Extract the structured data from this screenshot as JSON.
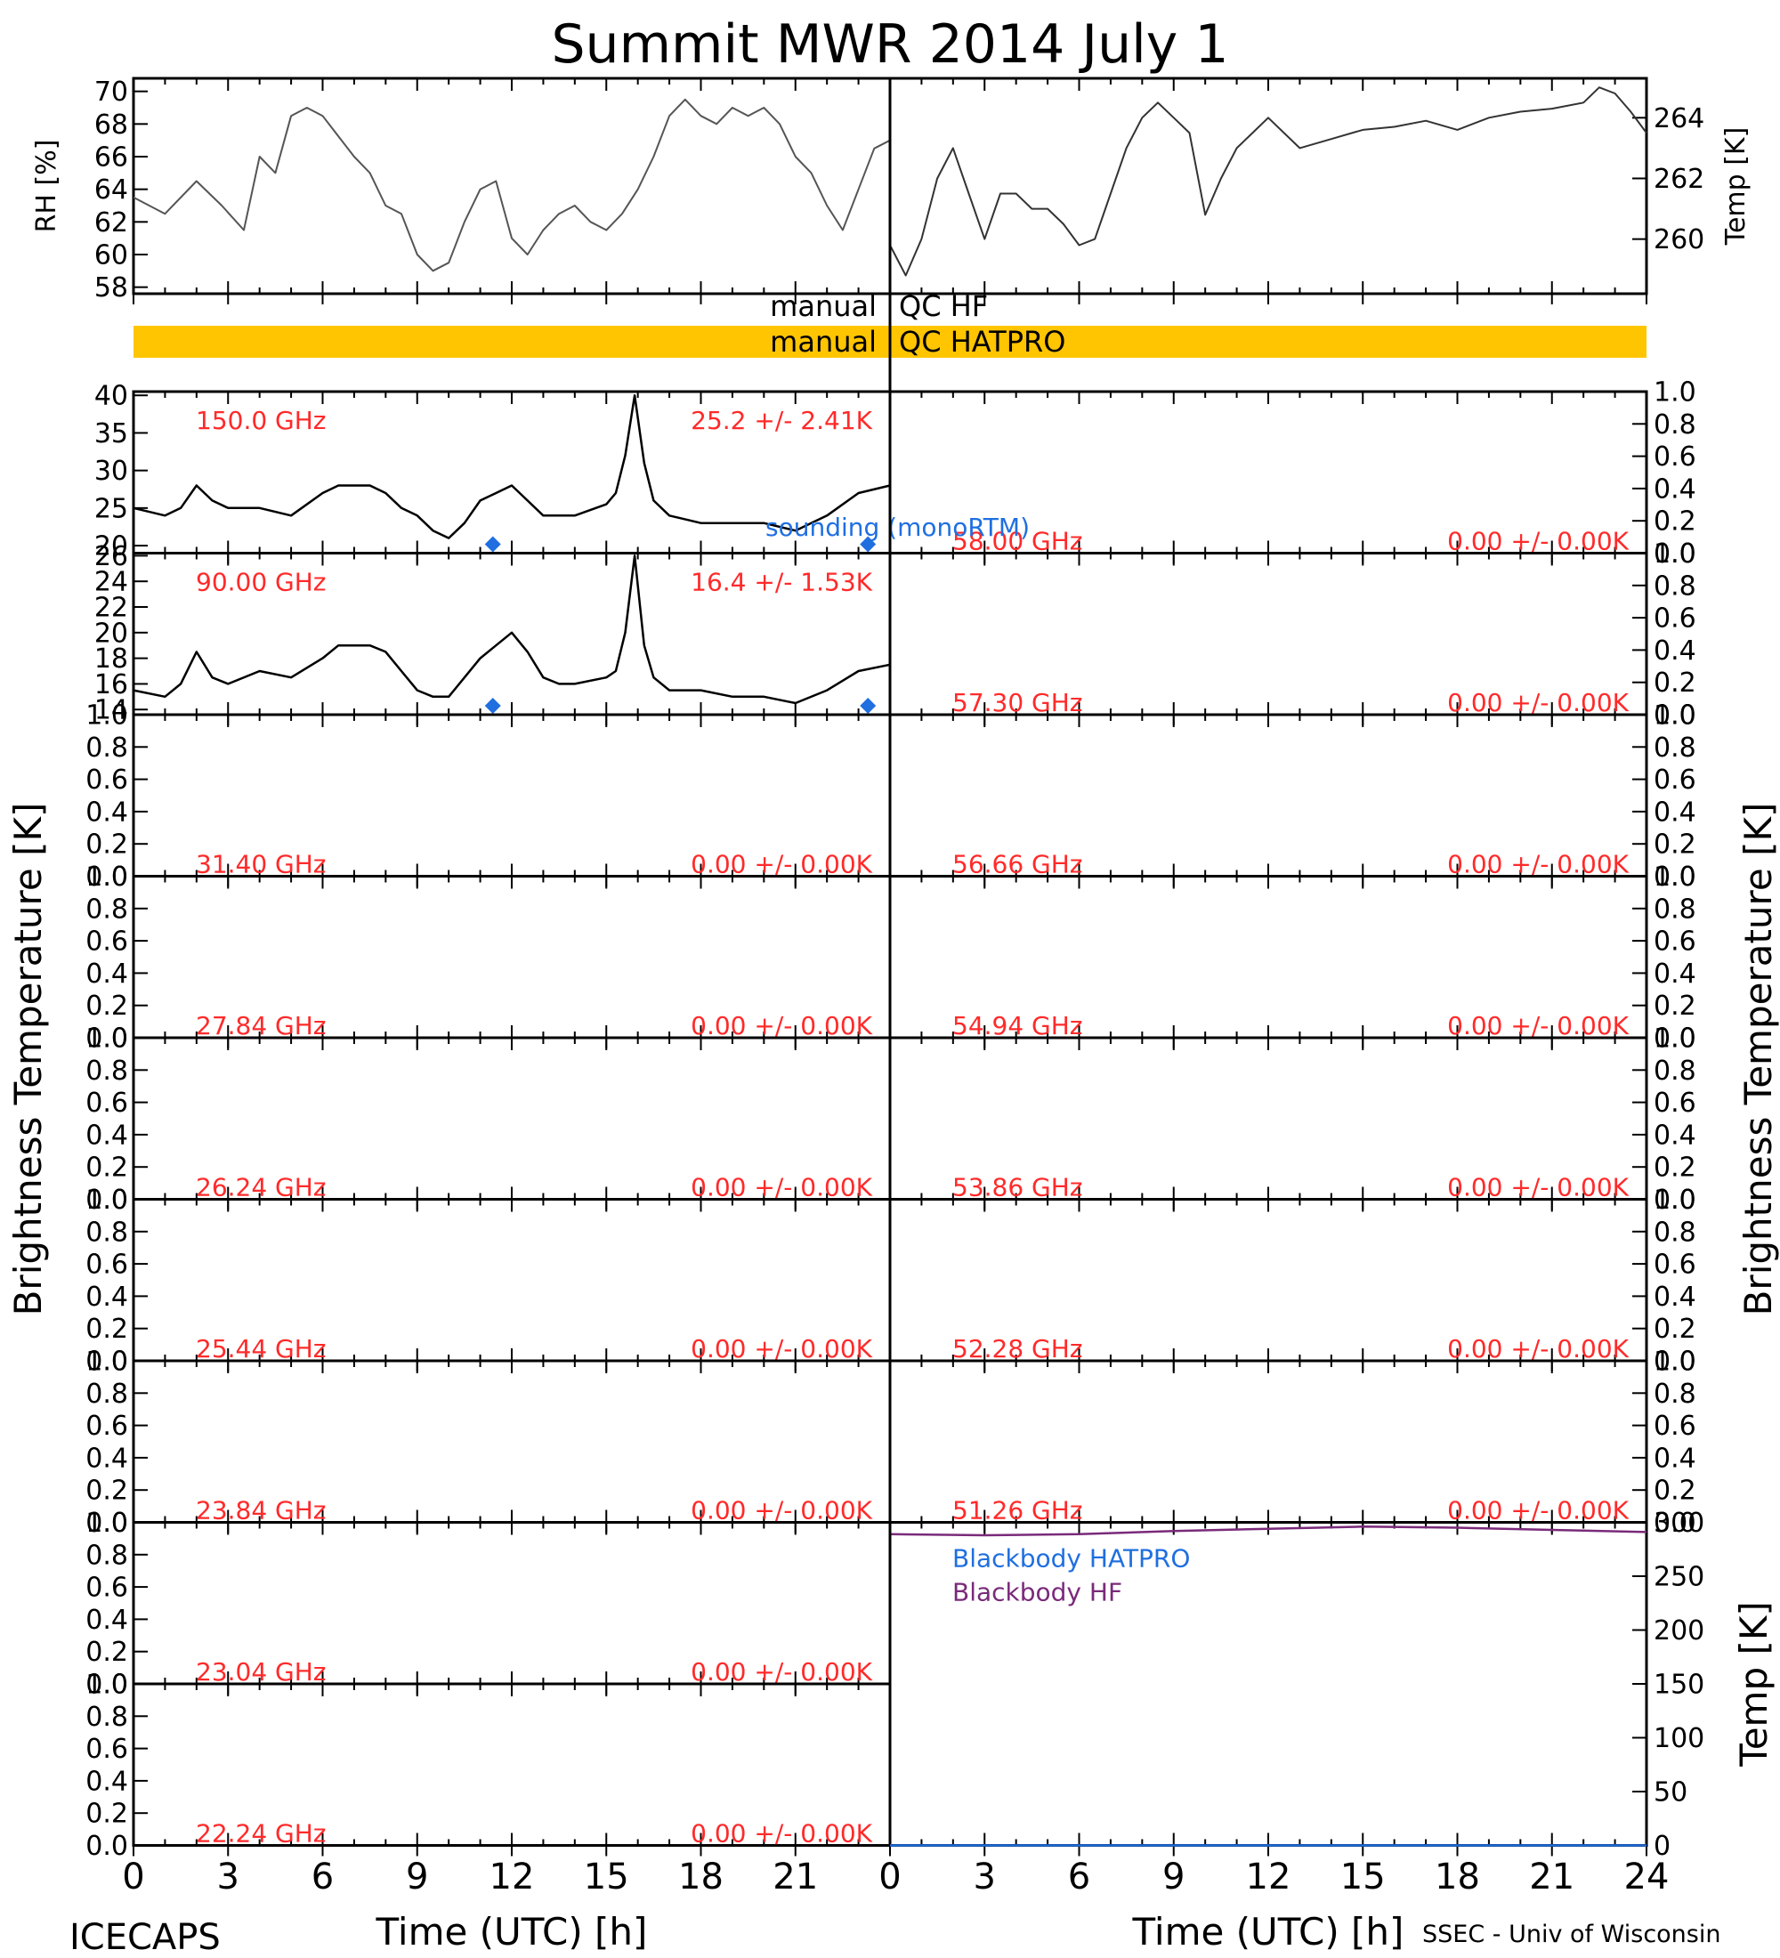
{
  "title": "Summit MWR 2014 July  1",
  "footer": {
    "left": "ICECAPS",
    "right": "SSEC - Univ of Wisconsin"
  },
  "colors": {
    "axis": "#000000",
    "label_red": "#ff2a2a",
    "blue": "#1f6fe0",
    "purple": "#7a2a7a",
    "qc_bar": "#ffc500",
    "trace": "#000000"
  },
  "x_axis": {
    "label": "Time (UTC) [h]",
    "ticks_left": [
      "0",
      "3",
      "6",
      "9",
      "12",
      "15",
      "18",
      "21"
    ],
    "ticks_right": [
      "0",
      "3",
      "6",
      "9",
      "12",
      "15",
      "18",
      "21",
      "24"
    ]
  },
  "y_label_bt": "Brightness Temperature [K]",
  "qc": {
    "hf_left": "manual",
    "hf_right": "QC HF",
    "hatpro_left": "manual",
    "hatpro_right": "QC HATPRO"
  },
  "chart_data": [
    {
      "id": "rh",
      "type": "line",
      "ylabel": "RH [%]",
      "ylim": [
        57.6,
        70.8
      ],
      "yticks": [
        "58",
        "60",
        "62",
        "64",
        "66",
        "68",
        "70"
      ],
      "x": [
        0,
        1,
        2,
        2.8,
        3.5,
        4,
        4.5,
        5,
        5.5,
        6,
        7,
        7.5,
        8,
        8.5,
        9,
        9.5,
        10,
        10.5,
        11,
        11.5,
        12,
        12.5,
        13,
        13.5,
        14,
        14.5,
        15,
        15.5,
        16,
        16.5,
        17,
        17.5,
        18,
        18.5,
        19,
        19.5,
        20,
        20.5,
        21,
        21.5,
        22,
        22.5,
        23,
        23.5,
        24
      ],
      "values": [
        63.5,
        62.5,
        64.5,
        63,
        61.5,
        66,
        65,
        68.5,
        69,
        68.5,
        66,
        65,
        63,
        62.5,
        60,
        59,
        59.5,
        62,
        64,
        64.5,
        61,
        60,
        61.5,
        62.5,
        63,
        62,
        61.5,
        62.5,
        64,
        66,
        68.5,
        69.5,
        68.5,
        68,
        69,
        68.5,
        69,
        68,
        66,
        65,
        63,
        61.5,
        64,
        66.5,
        67
      ]
    },
    {
      "id": "temp",
      "type": "line",
      "ylabel": "Temp [K]",
      "ylim": [
        258.2,
        265.3
      ],
      "yticks": [
        "260",
        "262",
        "264"
      ],
      "x": [
        0,
        0.5,
        1,
        1.5,
        2,
        2.5,
        3,
        3.5,
        4,
        4.5,
        5,
        5.5,
        6,
        6.5,
        7,
        7.5,
        8,
        8.5,
        9,
        9.5,
        10,
        10.5,
        11,
        11.5,
        12,
        13,
        14,
        15,
        16,
        17,
        18,
        19,
        20,
        21,
        22,
        22.5,
        23,
        23.5,
        24
      ],
      "values": [
        259.8,
        258.8,
        260,
        262,
        263,
        261.5,
        260,
        261.5,
        261.5,
        261,
        261,
        260.5,
        259.8,
        260,
        261.5,
        263,
        264,
        264.5,
        264,
        263.5,
        260.8,
        262,
        263,
        263.5,
        264,
        263,
        263.3,
        263.6,
        263.7,
        263.9,
        263.6,
        264,
        264.2,
        264.3,
        264.5,
        265,
        264.8,
        264.2,
        263.5
      ]
    },
    {
      "id": "bt150",
      "type": "line",
      "freq": "150.0 GHz",
      "stat": "25.2 +/-  2.41K",
      "ylim": [
        19,
        40.5
      ],
      "yticks": [
        "20",
        "25",
        "30",
        "35",
        "40"
      ],
      "x": [
        0,
        1,
        1.5,
        2,
        2.5,
        3,
        4,
        5,
        6,
        6.5,
        7,
        7.5,
        8,
        8.5,
        9,
        9.5,
        10,
        10.5,
        11,
        11.5,
        12,
        12.5,
        13,
        13.5,
        14,
        15,
        15.3,
        15.6,
        15.9,
        16.2,
        16.5,
        17,
        18,
        19,
        20,
        21,
        22,
        23,
        24
      ],
      "values": [
        25,
        24,
        25,
        28,
        26,
        25,
        25,
        24,
        27,
        28,
        28,
        28,
        27,
        25,
        24,
        22,
        21,
        23,
        26,
        27,
        28,
        26,
        24,
        24,
        24,
        25.5,
        27,
        32,
        40,
        31,
        26,
        24,
        23,
        23,
        23,
        22,
        24,
        27,
        28
      ],
      "sounding_x": [
        11.4,
        23.3
      ],
      "sounding_label": "sounding (monoRTM)"
    },
    {
      "id": "bt90",
      "type": "line",
      "freq": "90.00 GHz",
      "stat": "16.4 +/-  1.53K",
      "ylim": [
        13.6,
        26.2
      ],
      "yticks": [
        "14",
        "16",
        "18",
        "20",
        "22",
        "24",
        "26"
      ],
      "x": [
        0,
        1,
        1.5,
        2,
        2.5,
        3,
        4,
        5,
        6,
        6.5,
        7,
        7.5,
        8,
        8.5,
        9,
        9.5,
        10,
        10.5,
        11,
        11.5,
        12,
        12.5,
        13,
        13.5,
        14,
        15,
        15.3,
        15.6,
        15.9,
        16.2,
        16.5,
        17,
        18,
        19,
        20,
        21,
        22,
        23,
        24
      ],
      "values": [
        15.5,
        15,
        16,
        18.5,
        16.5,
        16,
        17,
        16.5,
        18,
        19,
        19,
        19,
        18.5,
        17,
        15.5,
        15,
        15,
        16.5,
        18,
        19,
        20,
        18.5,
        16.5,
        16,
        16,
        16.5,
        17,
        20,
        26,
        19,
        16.5,
        15.5,
        15.5,
        15,
        15,
        14.5,
        15.5,
        17,
        17.5
      ],
      "sounding_x": [
        11.4,
        23.3
      ]
    },
    {
      "id": "bt31",
      "type": "line",
      "freq": "31.40 GHz",
      "stat": "0.00 +/-  0.00K",
      "values": []
    },
    {
      "id": "bt27",
      "type": "line",
      "freq": "27.84 GHz",
      "stat": "0.00 +/-  0.00K",
      "values": []
    },
    {
      "id": "bt26",
      "type": "line",
      "freq": "26.24 GHz",
      "stat": "0.00 +/-  0.00K",
      "values": []
    },
    {
      "id": "bt25",
      "type": "line",
      "freq": "25.44 GHz",
      "stat": "0.00 +/-  0.00K",
      "values": []
    },
    {
      "id": "bt23_84",
      "type": "line",
      "freq": "23.84 GHz",
      "stat": "0.00 +/-  0.00K",
      "values": []
    },
    {
      "id": "bt23_04",
      "type": "line",
      "freq": "23.04 GHz",
      "stat": "0.00 +/-  0.00K",
      "values": []
    },
    {
      "id": "bt22",
      "type": "line",
      "freq": "22.24 GHz",
      "stat": "0.00 +/-  0.00K",
      "values": []
    },
    {
      "id": "bt58",
      "type": "line",
      "freq": "58.00 GHz",
      "stat": "0.00 +/-  0.00K",
      "values": []
    },
    {
      "id": "bt57",
      "type": "line",
      "freq": "57.30 GHz",
      "stat": "0.00 +/-  0.00K",
      "values": []
    },
    {
      "id": "bt56",
      "type": "line",
      "freq": "56.66 GHz",
      "stat": "0.00 +/-  0.00K",
      "values": []
    },
    {
      "id": "bt54",
      "type": "line",
      "freq": "54.94 GHz",
      "stat": "0.00 +/-  0.00K",
      "values": []
    },
    {
      "id": "bt53",
      "type": "line",
      "freq": "53.86 GHz",
      "stat": "0.00 +/-  0.00K",
      "values": []
    },
    {
      "id": "bt52",
      "type": "line",
      "freq": "52.28 GHz",
      "stat": "0.00 +/-  0.00K",
      "values": []
    },
    {
      "id": "bt51",
      "type": "line",
      "freq": "51.26 GHz",
      "stat": "0.00 +/-  0.00K",
      "values": []
    },
    {
      "id": "blackbody",
      "type": "line",
      "ylabel": "Temp [K]",
      "ylim": [
        0,
        300
      ],
      "yticks": [
        "0",
        "50",
        "100",
        "150",
        "200",
        "250",
        "300"
      ],
      "legend": [
        "Blackbody HATPRO",
        "Blackbody HF"
      ],
      "series": [
        {
          "name": "Blackbody HF",
          "x": [
            0,
            3,
            6,
            9,
            12,
            15,
            18,
            21,
            24
          ],
          "values": [
            289,
            288,
            289,
            292,
            294,
            296,
            295,
            293,
            291
          ]
        },
        {
          "name": "Blackbody HATPRO",
          "x": [
            0,
            24
          ],
          "values": [
            0,
            0
          ]
        }
      ]
    }
  ]
}
